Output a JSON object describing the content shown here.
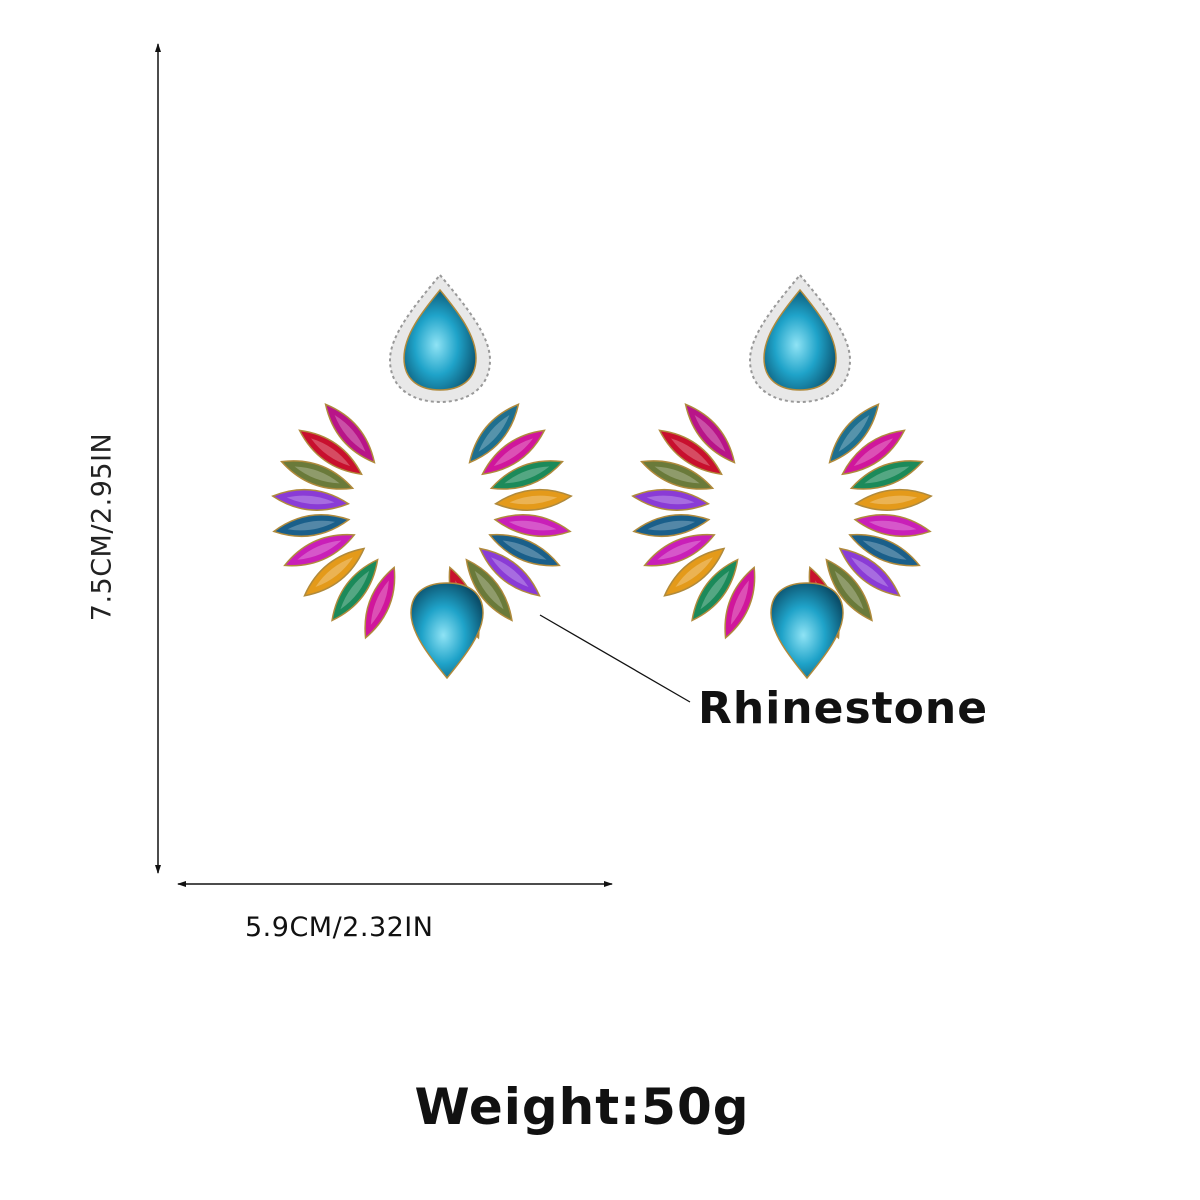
{
  "dimensions": {
    "height_label": "7.5CM/2.95IN",
    "width_label": "5.9CM/2.32IN"
  },
  "callout": {
    "label": "Rhinestone"
  },
  "weight": {
    "label": "Weight:50g"
  },
  "colors": {
    "stones": [
      "#1e6f8f",
      "#d0169c",
      "#1b8a5a",
      "#e49a1a",
      "#c91fb8",
      "#1a5f8a",
      "#8a3bd6",
      "#6a7a3a",
      "#c8102e",
      "#b81488"
    ],
    "teardrop": "#1fa3c9",
    "halo": "#e8e8e8",
    "setting": "#b08a3c"
  }
}
